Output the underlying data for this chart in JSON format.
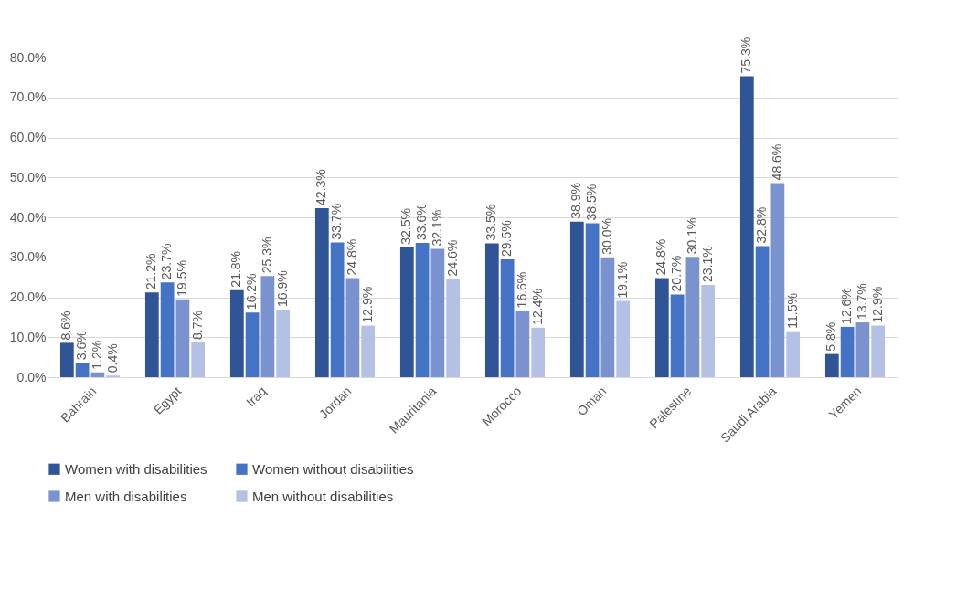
{
  "chart_data": {
    "type": "bar",
    "categories": [
      "Bahrain",
      "Egypt",
      "Iraq",
      "Jordan",
      "Mauritania",
      "Morocco",
      "Oman",
      "Palestine",
      "Saudi Arabia",
      "Yemen"
    ],
    "series": [
      {
        "name": "Women with disabilities",
        "color": "#2f5597",
        "values": [
          8.6,
          21.2,
          21.8,
          42.3,
          32.5,
          33.5,
          38.9,
          24.8,
          75.3,
          5.8
        ],
        "value_labels": [
          "8.6%",
          "21.2%",
          "21.8%",
          "42.3%",
          "32.5%",
          "33.5%",
          "38.9%",
          "24.8%",
          "75.3%",
          "5.8%"
        ]
      },
      {
        "name": "Women without disabilities",
        "color": "#4472c4",
        "values": [
          3.6,
          23.7,
          16.2,
          33.7,
          33.6,
          29.5,
          38.5,
          20.7,
          32.8,
          12.6
        ],
        "value_labels": [
          "3.6%",
          "23.7%",
          "16.2%",
          "33.7%",
          "33.6%",
          "29.5%",
          "38.5%",
          "20.7%",
          "32.8%",
          "12.6%"
        ]
      },
      {
        "name": "Men with disabilities",
        "color": "#7a93d0",
        "values": [
          1.2,
          19.5,
          25.3,
          24.8,
          32.1,
          16.6,
          30.0,
          30.1,
          48.6,
          13.7
        ],
        "value_labels": [
          "1.2%",
          "19.5%",
          "25.3%",
          "24.8%",
          "32.1%",
          "16.6%",
          "30.0%",
          "30.1%",
          "48.6%",
          "13.7%"
        ]
      },
      {
        "name": "Men without disabilities",
        "color": "#b4c0e4",
        "values": [
          0.4,
          8.7,
          16.9,
          12.9,
          24.6,
          12.4,
          19.1,
          23.1,
          11.5,
          12.9
        ],
        "value_labels": [
          "0.4%",
          "8.7%",
          "16.9%",
          "12.9%",
          "24.6%",
          "12.4%",
          "19.1%",
          "23.1%",
          "11.5%",
          "12.9%"
        ]
      }
    ],
    "ylim": [
      0,
      80
    ],
    "yticks": [
      {
        "value": 0,
        "label": "0.0%"
      },
      {
        "value": 10,
        "label": "10.0%"
      },
      {
        "value": 20,
        "label": "20.0%"
      },
      {
        "value": 30,
        "label": "30.0%"
      },
      {
        "value": 40,
        "label": "40.0%"
      },
      {
        "value": 50,
        "label": "50.0%"
      },
      {
        "value": 60,
        "label": "60.0%"
      },
      {
        "value": 70,
        "label": "70.0%"
      },
      {
        "value": 80,
        "label": "80.0%"
      }
    ],
    "grid": "y",
    "legend": "bottom"
  }
}
